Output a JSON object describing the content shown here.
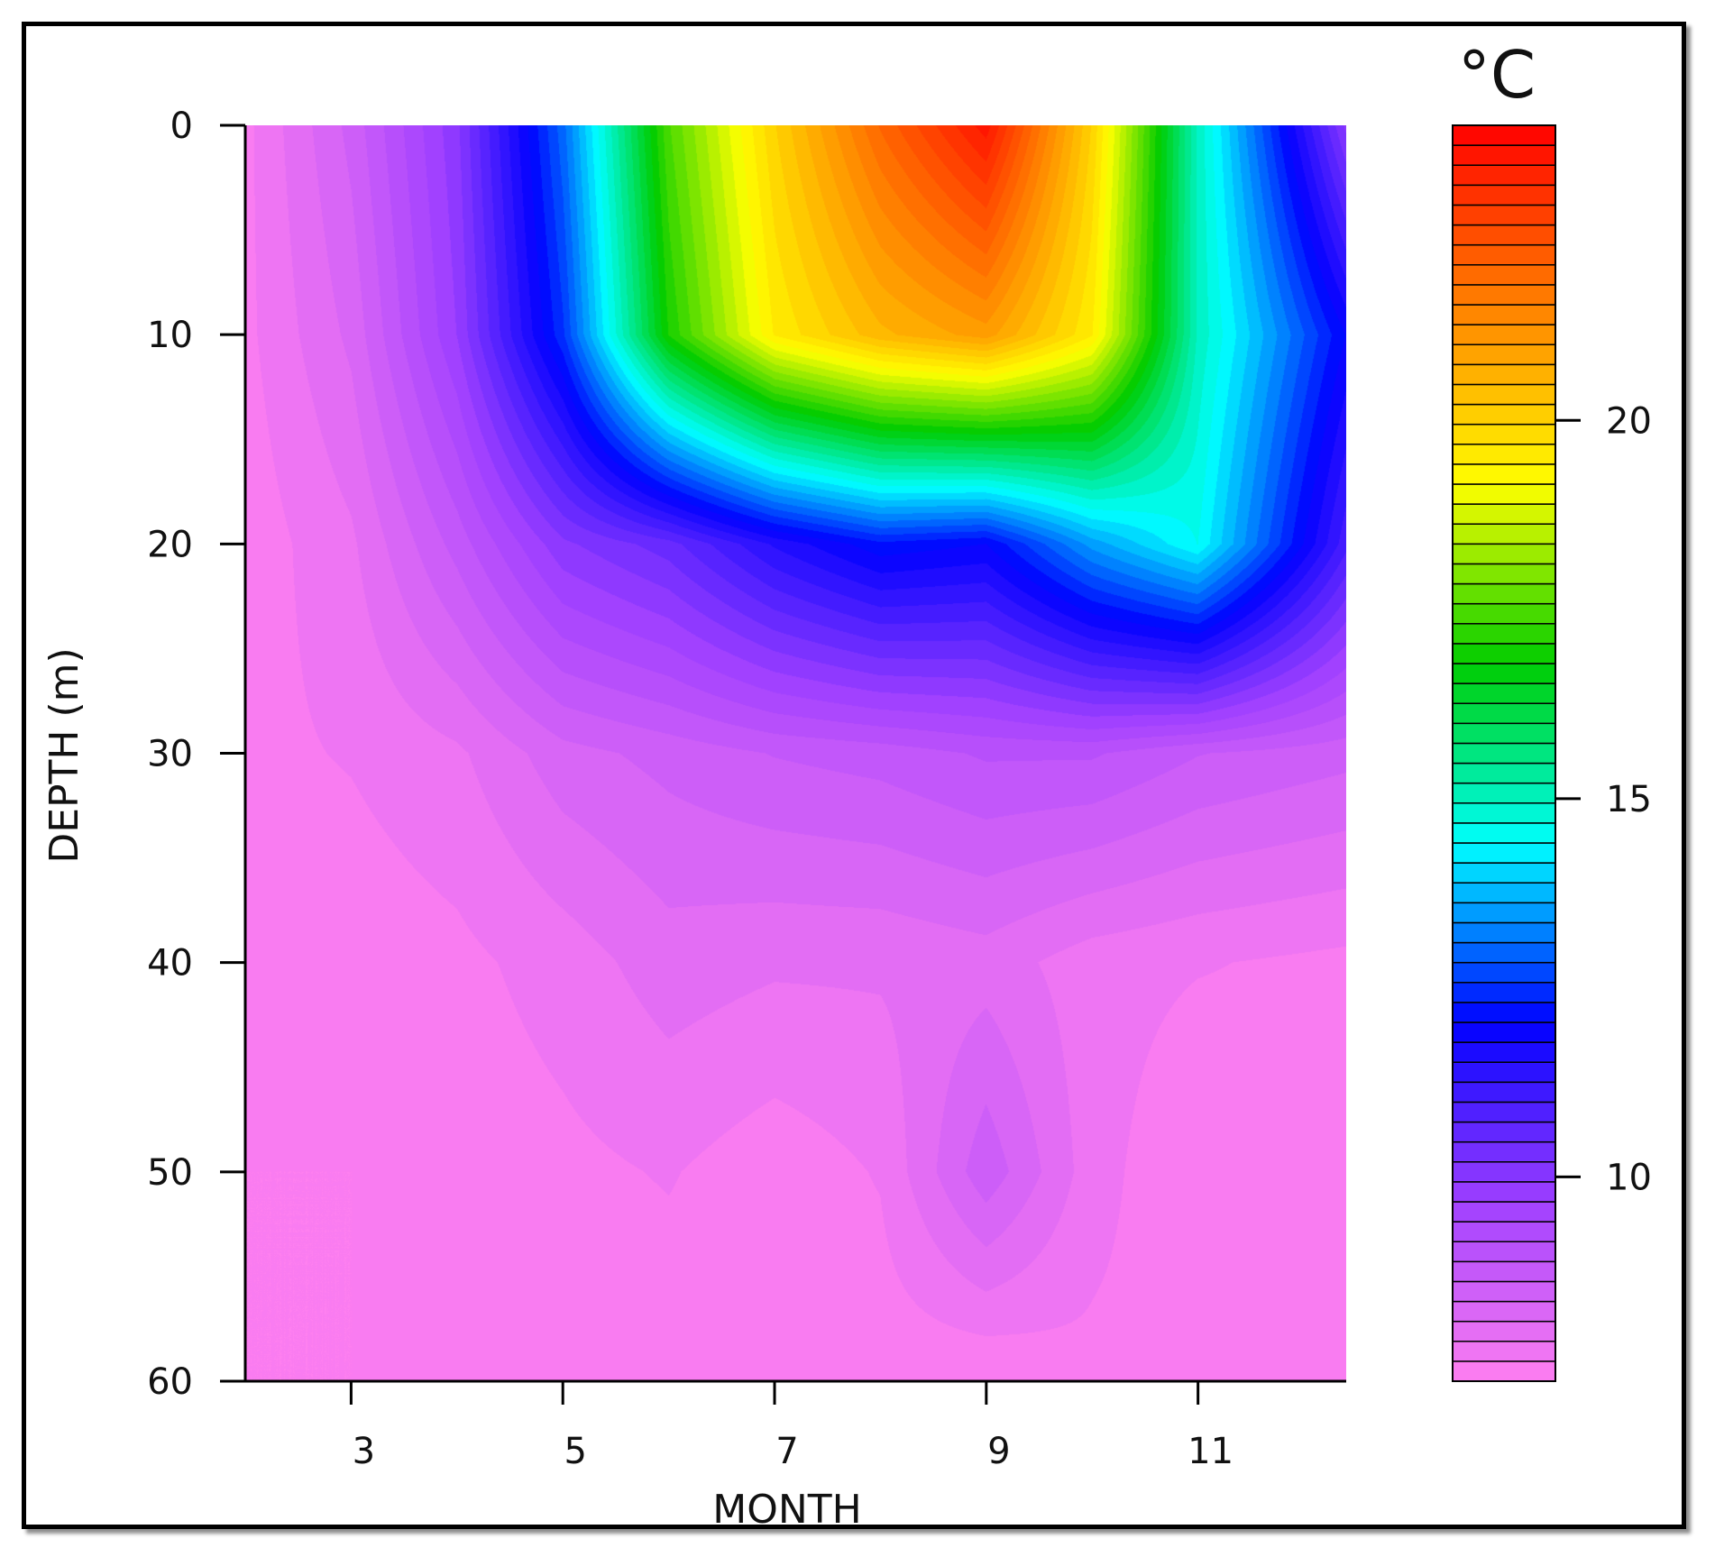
{
  "chart_data": {
    "type": "heatmap",
    "subtype": "filled-contour",
    "xlabel": "MONTH",
    "ylabel": "DEPTH (m)",
    "xlim": [
      2,
      12.4
    ],
    "ylim": [
      60,
      0
    ],
    "x_ticks": [
      3,
      5,
      7,
      9,
      11
    ],
    "y_ticks": [
      0,
      10,
      20,
      30,
      40,
      50,
      60
    ],
    "colorbar": {
      "title": "°C",
      "range": [
        7.3,
        23.9
      ],
      "ticks": [
        10,
        15,
        20
      ],
      "palette": [
        "#ff80f0",
        "#a040ff",
        "#0000ff",
        "#00ffff",
        "#00cc00",
        "#ffff00",
        "#ff8000",
        "#ff0000"
      ]
    },
    "x": [
      2,
      3,
      4,
      5,
      6,
      7,
      8,
      9,
      10,
      11,
      12.4
    ],
    "depths": [
      0,
      10,
      20,
      30,
      40,
      50,
      60
    ],
    "z": [
      [
        7.5,
        8.5,
        10.0,
        13.0,
        17.5,
        20.0,
        22.0,
        23.5,
        20.0,
        15.0,
        10.0
      ],
      [
        7.5,
        8.2,
        9.8,
        12.5,
        17.0,
        19.5,
        20.5,
        21.0,
        19.5,
        15.0,
        12.0
      ],
      [
        7.4,
        7.8,
        8.8,
        10.0,
        10.5,
        11.5,
        12.2,
        12.0,
        13.5,
        14.5,
        11.0
      ],
      [
        7.5,
        7.6,
        7.8,
        8.3,
        8.5,
        8.7,
        8.8,
        9.0,
        9.0,
        8.7,
        8.5
      ],
      [
        7.4,
        7.4,
        7.5,
        7.7,
        8.0,
        7.9,
        7.9,
        8.0,
        7.7,
        7.6,
        7.5
      ],
      [
        7.3,
        7.3,
        7.4,
        7.5,
        7.6,
        7.4,
        7.6,
        8.6,
        7.7,
        7.3,
        7.5
      ],
      [
        7.3,
        7.3,
        7.3,
        7.3,
        7.4,
        7.4,
        7.4,
        7.3,
        7.5,
        7.5,
        7.4
      ]
    ]
  }
}
